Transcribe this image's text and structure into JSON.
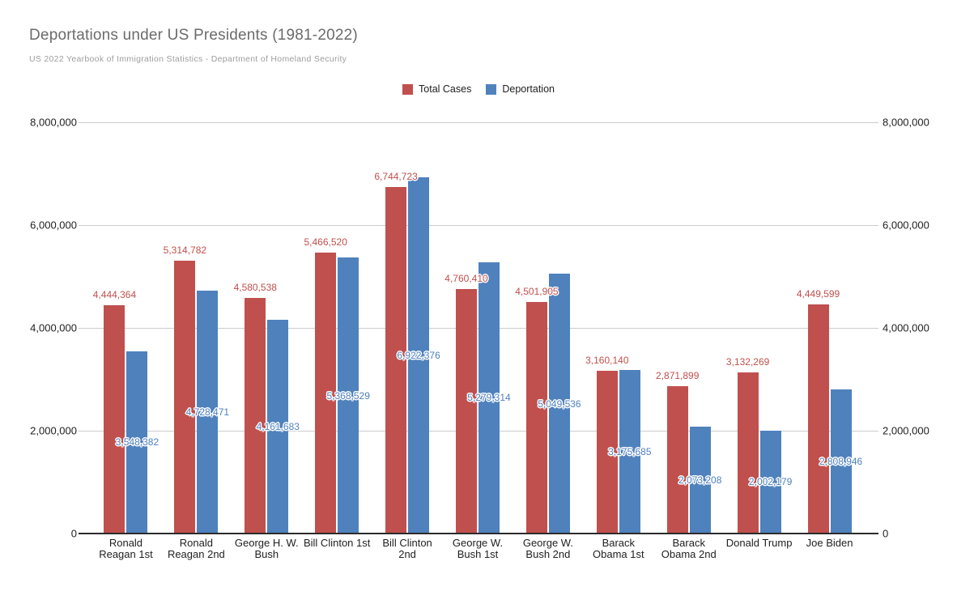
{
  "title": "Deportations under US Presidents (1981-2022)",
  "subtitle": "US 2022 Yearbook of Immigration Statistics - Department of Homeland Security",
  "colors": {
    "total_cases": "#c0504d",
    "deportation": "#4f81bd",
    "grid": "#cccccc",
    "axis_baseline": "#2b2b2b",
    "title_text": "#6b6b6b",
    "subtitle_text": "#9e9e9e",
    "tick_text": "#212121"
  },
  "chart_data": {
    "type": "bar",
    "title": "Deportations under US Presidents (1981-2022)",
    "subtitle": "US 2022 Yearbook of Immigration Statistics - Department of Homeland Security",
    "xlabel": "",
    "ylabel": "",
    "ylim": [
      0,
      8000000
    ],
    "yticks": [
      0,
      2000000,
      4000000,
      6000000,
      8000000
    ],
    "grid": true,
    "legend_position": "top",
    "value_labels": true,
    "categories": [
      "Ronald Reagan 1st",
      "Ronald Reagan 2nd",
      "George H. W. Bush",
      "Bill Clinton 1st",
      "Bill Clinton 2nd",
      "George W. Bush 1st",
      "George W. Bush 2nd",
      "Barack Obama 1st",
      "Barack Obama 2nd",
      "Donald Trump",
      "Joe Biden"
    ],
    "category_label_lines": [
      [
        "Ronald",
        "Reagan 1st"
      ],
      [
        "Ronald",
        "Reagan 2nd"
      ],
      [
        "George H. W.",
        "Bush"
      ],
      [
        "Bill Clinton 1st"
      ],
      [
        "Bill Clinton",
        "2nd"
      ],
      [
        "George W.",
        "Bush 1st"
      ],
      [
        "George W.",
        "Bush 2nd"
      ],
      [
        "Barack",
        "Obama 1st"
      ],
      [
        "Barack",
        "Obama 2nd"
      ],
      [
        "Donald Trump"
      ],
      [
        "Joe Biden"
      ]
    ],
    "series": [
      {
        "name": "Total Cases",
        "color": "#c0504d",
        "values": [
          4444364,
          5314782,
          4580538,
          5466520,
          6744723,
          4760410,
          4501905,
          3160140,
          2871899,
          3132269,
          4449599
        ]
      },
      {
        "name": "Deportation",
        "color": "#4f81bd",
        "values": [
          3548382,
          4728471,
          4161683,
          5368529,
          6922376,
          5279314,
          5049536,
          3175685,
          2073208,
          2002179,
          2808946
        ]
      }
    ]
  }
}
